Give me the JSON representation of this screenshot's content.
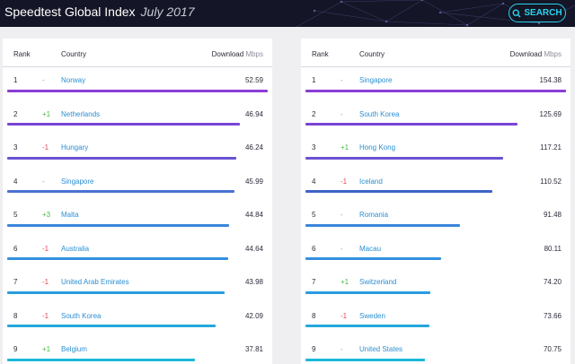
{
  "header": {
    "title": "Speedtest Global Index",
    "subtitle": "July 2017",
    "search_label": "SEARCH"
  },
  "columns": {
    "rank": "Rank",
    "country": "Country",
    "download": "Download",
    "unit": "Mbps"
  },
  "colors": {
    "header_bg": "#141526",
    "accent": "#2ad4f0",
    "link": "#2a8fd2",
    "up": "#4cb84c",
    "down": "#e0485a"
  },
  "left_table": {
    "rows": [
      {
        "rank": "1",
        "change": "-",
        "country": "Norway",
        "speed": "52.59",
        "fraction": 1.0,
        "color": "#8a3ed6"
      },
      {
        "rank": "2",
        "change": "+1",
        "country": "Netherlands",
        "speed": "46.94",
        "fraction": 0.892,
        "color": "#7b45d4"
      },
      {
        "rank": "3",
        "change": "-1",
        "country": "Hungary",
        "speed": "46.24",
        "fraction": 0.879,
        "color": "#6a52d2"
      },
      {
        "rank": "4",
        "change": "-",
        "country": "Singapore",
        "speed": "45.99",
        "fraction": 0.874,
        "color": "#4a72d2"
      },
      {
        "rank": "5",
        "change": "+3",
        "country": "Malta",
        "speed": "44.84",
        "fraction": 0.853,
        "color": "#3a86dc"
      },
      {
        "rank": "6",
        "change": "-1",
        "country": "Australia",
        "speed": "44.64",
        "fraction": 0.849,
        "color": "#3390e0"
      },
      {
        "rank": "7",
        "change": "-1",
        "country": "United Arab Emirates",
        "speed": "43.98",
        "fraction": 0.836,
        "color": "#2a9ce0"
      },
      {
        "rank": "8",
        "change": "-1",
        "country": "South Korea",
        "speed": "42.09",
        "fraction": 0.8,
        "color": "#22a8dc"
      },
      {
        "rank": "9",
        "change": "+1",
        "country": "Belgium",
        "speed": "37.81",
        "fraction": 0.719,
        "color": "#1ab8d8"
      }
    ]
  },
  "right_table": {
    "rows": [
      {
        "rank": "1",
        "change": "-",
        "country": "Singapore",
        "speed": "154.38",
        "fraction": 1.0,
        "color": "#8a3ed6"
      },
      {
        "rank": "2",
        "change": "-",
        "country": "South Korea",
        "speed": "125.69",
        "fraction": 0.814,
        "color": "#7b45d4"
      },
      {
        "rank": "3",
        "change": "+1",
        "country": "Hong Kong",
        "speed": "117.21",
        "fraction": 0.759,
        "color": "#6a52d2"
      },
      {
        "rank": "4",
        "change": "-1",
        "country": "Iceland",
        "speed": "110.52",
        "fraction": 0.716,
        "color": "#3d63c6"
      },
      {
        "rank": "5",
        "change": "-",
        "country": "Romania",
        "speed": "91.48",
        "fraction": 0.593,
        "color": "#3a86dc"
      },
      {
        "rank": "6",
        "change": "-",
        "country": "Macau",
        "speed": "80.11",
        "fraction": 0.519,
        "color": "#3390e0"
      },
      {
        "rank": "7",
        "change": "+1",
        "country": "Switzerland",
        "speed": "74.20",
        "fraction": 0.481,
        "color": "#2a9ce0"
      },
      {
        "rank": "8",
        "change": "-1",
        "country": "Sweden",
        "speed": "73.66",
        "fraction": 0.477,
        "color": "#22a8dc"
      },
      {
        "rank": "9",
        "change": "-",
        "country": "United States",
        "speed": "70.75",
        "fraction": 0.458,
        "color": "#1ab8d8"
      }
    ]
  }
}
